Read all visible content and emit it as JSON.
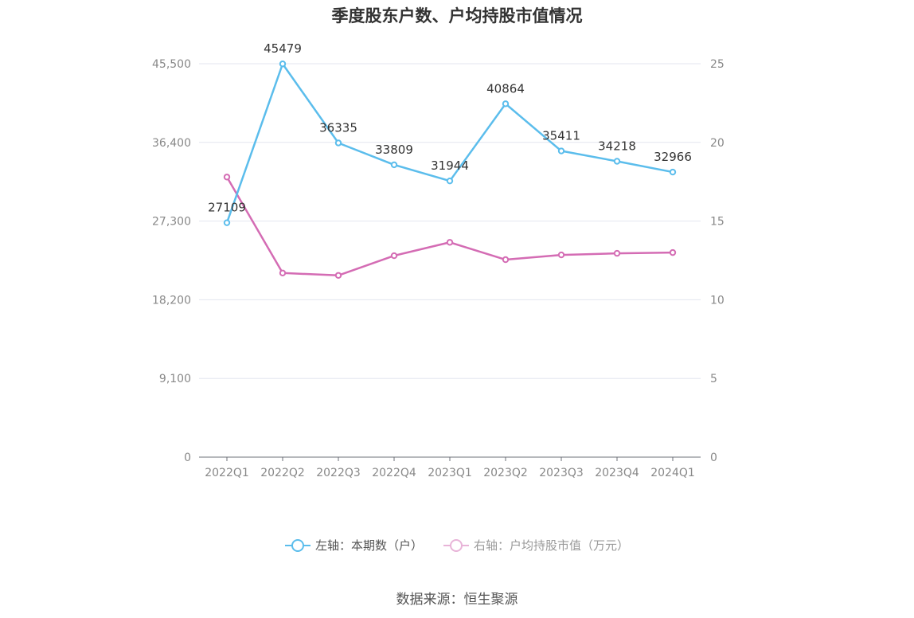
{
  "chart_data": {
    "type": "line",
    "title": "季度股东户数、户均持股市值情况",
    "categories": [
      "2022Q1",
      "2022Q2",
      "2022Q3",
      "2022Q4",
      "2023Q1",
      "2023Q2",
      "2023Q3",
      "2023Q4",
      "2024Q1"
    ],
    "left_axis": {
      "ticks": [
        "0",
        "9,100",
        "18,200",
        "27,300",
        "36,400",
        "45,500"
      ],
      "ylim": [
        0,
        45500
      ]
    },
    "right_axis": {
      "ticks": [
        "0",
        "5",
        "10",
        "15",
        "20",
        "25"
      ],
      "ylim": [
        0,
        25
      ]
    },
    "series": [
      {
        "name": "左轴：本期数（户）",
        "axis": "left",
        "color": "#5bbdec",
        "values": [
          27109,
          45479,
          36335,
          33809,
          31944,
          40864,
          35411,
          34218,
          32966
        ],
        "labels": [
          "27109",
          "45479",
          "36335",
          "33809",
          "31944",
          "40864",
          "35411",
          "34218",
          "32966"
        ]
      },
      {
        "name": "右轴：户均持股市值（万元）",
        "axis": "right",
        "color": "#d46cb4",
        "values": [
          17.8,
          11.7,
          11.55,
          12.8,
          13.65,
          12.55,
          12.85,
          12.95,
          13.0
        ]
      }
    ],
    "grid": true,
    "legend_position": "bottom"
  },
  "legend": {
    "left_series": "左轴：本期数（户）",
    "right_series": "右轴：户均持股市值（万元）",
    "left_color": "#5bbdec",
    "right_color": "#e8b4d8"
  },
  "source": "数据来源：恒生聚源"
}
